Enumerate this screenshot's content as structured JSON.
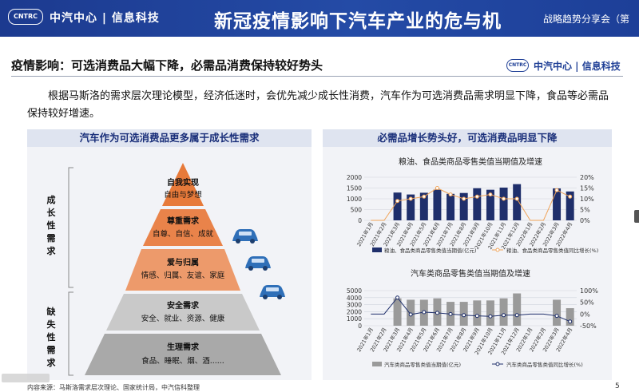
{
  "header": {
    "logo_text": "CNTRC",
    "brand": "中汽中心 | 信息科技",
    "title": "新冠疫情影响下汽车产业的危与机",
    "subtitle": "战略趋势分享会（第"
  },
  "section": {
    "heading": "疫情影响：可选消费品大幅下降，必需品消费保持较好势头",
    "logo_text": "CNTRC",
    "brand": "中汽中心 | 信息科技"
  },
  "paragraph": "根据马斯洛的需求层次理论模型，经济低迷时，会优先减少成长性消费，汽车作为可选消费品需求明显下降，食品等必需品保持较好增速。",
  "left_panel": {
    "title": "汽车作为可选消费品更多属于成长性需求",
    "bracket_growth": [
      "成",
      "长",
      "性",
      "需",
      "求"
    ],
    "bracket_basic": [
      "缺",
      "失",
      "性",
      "需",
      "求"
    ],
    "levels": [
      {
        "title": "自我实现",
        "desc": "自由与梦想",
        "color": "#e77a3a"
      },
      {
        "title": "尊重需求",
        "desc": "自尊、自信、成就",
        "color": "#e9834a"
      },
      {
        "title": "爱与归属",
        "desc": "情感、归属、友谊、家庭",
        "color": "#ed9a6b"
      },
      {
        "title": "安全需求",
        "desc": "安全、就业、资源、健康",
        "color": "#c9c9c9"
      },
      {
        "title": "生理需求",
        "desc": "食品、睡眠、烟、酒......",
        "color": "#a9a9a9"
      }
    ]
  },
  "right_panel": {
    "title": "必需品增长势头好，可选消费品明显下降"
  },
  "chart_data": [
    {
      "type": "bar",
      "title": "粮油、食品类商品零售类值当期值及增速",
      "categories": [
        "2021年1月",
        "2021年2月",
        "2021年3月",
        "2021年4月",
        "2021年5月",
        "2021年6月",
        "2021年7月",
        "2021年8月",
        "2021年9月",
        "2021年10月",
        "2021年11月",
        "2021年12月",
        "2022年1月",
        "2022年2月",
        "2022年3月",
        "2022年4月"
      ],
      "series": [
        {
          "name": "粮油、食品类商品零售类值当期值(亿元)",
          "kind": "bar",
          "axis": "left",
          "color": "#1f2f6b",
          "values": [
            null,
            null,
            1290,
            1200,
            1280,
            1420,
            1230,
            1270,
            1490,
            1420,
            1520,
            1680,
            null,
            null,
            1480,
            1340
          ]
        },
        {
          "name": "粮油、食品类商品零售类值同比增长(%)",
          "kind": "line",
          "axis": "right",
          "color": "#f0a45a",
          "values": [
            null,
            null,
            9,
            10,
            11,
            15,
            12,
            10,
            11,
            12,
            10,
            10,
            null,
            null,
            14,
            11
          ]
        }
      ],
      "yleft": {
        "min": 0,
        "max": 2000,
        "ticks": [
          0,
          500,
          1000,
          1500,
          2000
        ]
      },
      "yright": {
        "min": 0,
        "max": 20,
        "ticks": [
          "0%",
          "5%",
          "10%",
          "15%",
          "20%"
        ]
      }
    },
    {
      "type": "bar",
      "title": "汽车类商品零售类值当期值及增速",
      "categories": [
        "2021年1月",
        "2021年2月",
        "2021年3月",
        "2021年4月",
        "2021年5月",
        "2021年6月",
        "2021年7月",
        "2021年8月",
        "2021年9月",
        "2021年10月",
        "2021年11月",
        "2021年12月",
        "2022年1月",
        "2022年2月",
        "2022年3月",
        "2022年4月"
      ],
      "series": [
        {
          "name": "汽车类商品零售类值当期值(亿元)",
          "kind": "bar",
          "axis": "left",
          "color": "#9a9a9a",
          "values": [
            null,
            null,
            3900,
            3700,
            3700,
            3900,
            3400,
            3400,
            3600,
            3600,
            3900,
            4600,
            null,
            null,
            3700,
            2500
          ]
        },
        {
          "name": "汽车类商品零售类值同比增长(%)",
          "kind": "line",
          "axis": "right",
          "color": "#1f2f6b",
          "values": [
            null,
            null,
            70,
            -2,
            8,
            5,
            0,
            -5,
            -8,
            -10,
            -5,
            -5,
            null,
            null,
            -8,
            -32
          ]
        }
      ],
      "yleft": {
        "min": 0,
        "max": 5000,
        "ticks": [
          0,
          1000,
          2000,
          3000,
          4000,
          5000
        ]
      },
      "yright": {
        "min": -50,
        "max": 100,
        "ticks": [
          "-50%",
          "0%",
          "50%",
          "100%"
        ]
      }
    }
  ],
  "footer": {
    "source": "内容来源：马斯洛需求层次理论、国家统计局，中汽信科整理",
    "page": "5"
  }
}
